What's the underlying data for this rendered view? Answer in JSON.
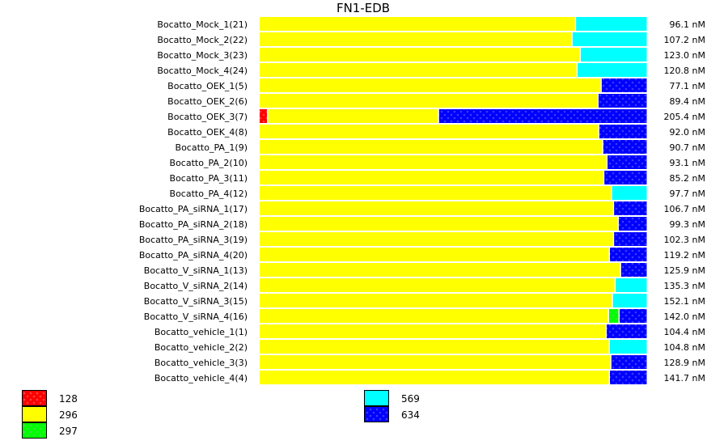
{
  "chart_data": {
    "type": "bar",
    "orientation": "horizontal",
    "stacked": "percent",
    "title": "FN1-EDB",
    "grid": false,
    "legend_placement": "bottom",
    "series_styles": [
      {
        "name": "128",
        "color": "#ff0000",
        "pattern": "dotted"
      },
      {
        "name": "296",
        "color": "#ffff00",
        "pattern": "solid"
      },
      {
        "name": "297",
        "color": "#00ff00",
        "pattern": "dotted"
      },
      {
        "name": "569",
        "color": "#00ffff",
        "pattern": "solid"
      },
      {
        "name": "634",
        "color": "#0000ff",
        "pattern": "dotted"
      }
    ],
    "categories": [
      "Bocatto_Mock_1(21)",
      "Bocatto_Mock_2(22)",
      "Bocatto_Mock_3(23)",
      "Bocatto_Mock_4(24)",
      "Bocatto_OEK_1(5)",
      "Bocatto_OEK_2(6)",
      "Bocatto_OEK_3(7)",
      "Bocatto_OEK_4(8)",
      "Bocatto_PA_1(9)",
      "Bocatto_PA_2(10)",
      "Bocatto_PA_3(11)",
      "Bocatto_PA_4(12)",
      "Bocatto_PA_siRNA_1(17)",
      "Bocatto_PA_siRNA_2(18)",
      "Bocatto_PA_siRNA_3(19)",
      "Bocatto_PA_siRNA_4(20)",
      "Bocatto_V_siRNA_1(13)",
      "Bocatto_V_siRNA_2(14)",
      "Bocatto_V_siRNA_3(15)",
      "Bocatto_V_siRNA_4(16)",
      "Bocatto_vehicle_1(1)",
      "Bocatto_vehicle_2(2)",
      "Bocatto_vehicle_3(3)",
      "Bocatto_vehicle_4(4)"
    ],
    "totals": [
      "96.1 nM",
      "107.2 nM",
      "123.0 nM",
      "120.8 nM",
      "77.1 nM",
      "89.4 nM",
      "205.4 nM",
      "92.0 nM",
      "90.7 nM",
      "93.1 nM",
      "85.2 nM",
      "97.7 nM",
      "106.7 nM",
      "99.3 nM",
      "102.3 nM",
      "119.2 nM",
      "125.9 nM",
      "135.3 nM",
      "152.1 nM",
      "142.0 nM",
      "104.4 nM",
      "104.8 nM",
      "128.9 nM",
      "141.7 nM"
    ],
    "series": [
      {
        "name": "128",
        "values": [
          0,
          0,
          0,
          0,
          0,
          0,
          2.2,
          0,
          0,
          0,
          0,
          0,
          0,
          0,
          0,
          0,
          0,
          0,
          0,
          0,
          0,
          0,
          0,
          0
        ]
      },
      {
        "name": "296",
        "values": [
          81.5,
          80.6,
          82.7,
          81.9,
          88.1,
          87.3,
          44.0,
          87.5,
          88.5,
          89.6,
          88.8,
          90.8,
          91.3,
          92.5,
          91.3,
          90.2,
          93.1,
          91.7,
          91.0,
          90.0,
          89.4,
          90.2,
          90.6,
          90.2
        ]
      },
      {
        "name": "297",
        "values": [
          0,
          0,
          0,
          0,
          0,
          0,
          0,
          0,
          0,
          0,
          0,
          0,
          0,
          0,
          0,
          0,
          0,
          0,
          0,
          2.7,
          0,
          0,
          0,
          0
        ]
      },
      {
        "name": "569",
        "values": [
          18.5,
          19.4,
          17.3,
          18.1,
          0,
          0,
          0,
          0,
          0,
          0,
          0,
          9.2,
          0,
          0,
          0,
          0,
          0,
          8.3,
          9.0,
          0,
          0,
          9.8,
          0,
          0
        ]
      },
      {
        "name": "634",
        "values": [
          0,
          0,
          0,
          0,
          11.9,
          12.7,
          53.8,
          12.5,
          11.5,
          10.4,
          11.2,
          0,
          8.7,
          7.5,
          8.7,
          9.8,
          6.9,
          0,
          0,
          7.3,
          10.6,
          0,
          9.4,
          9.8
        ]
      }
    ],
    "xlim": [
      0,
      100
    ]
  }
}
